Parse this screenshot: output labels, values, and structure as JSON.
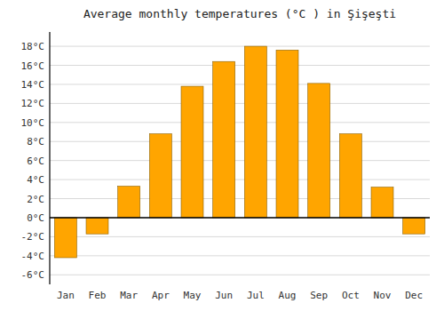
{
  "chart_data": {
    "type": "bar",
    "title": "Average monthly temperatures (°C ) in Şişeşti",
    "categories": [
      "Jan",
      "Feb",
      "Mar",
      "Apr",
      "May",
      "Jun",
      "Jul",
      "Aug",
      "Sep",
      "Oct",
      "Nov",
      "Dec"
    ],
    "values": [
      -4.2,
      -1.7,
      3.3,
      8.8,
      13.8,
      16.4,
      18.0,
      17.6,
      14.1,
      8.8,
      3.2,
      -1.7
    ],
    "color": "#FFA500",
    "ylim": [
      -7,
      19.5
    ],
    "yticks": [
      {
        "value": -6,
        "label": "-6°C"
      },
      {
        "value": -4,
        "label": "-4°C"
      },
      {
        "value": -2,
        "label": "-2°C"
      },
      {
        "value": 0,
        "label": "0°C"
      },
      {
        "value": 2,
        "label": "2°C"
      },
      {
        "value": 4,
        "label": "4°C"
      },
      {
        "value": 6,
        "label": "6°C"
      },
      {
        "value": 8,
        "label": "8°C"
      },
      {
        "value": 10,
        "label": "10°C"
      },
      {
        "value": 12,
        "label": "12°C"
      },
      {
        "value": 14,
        "label": "14°C"
      },
      {
        "value": 16,
        "label": "16°C"
      },
      {
        "value": 18,
        "label": "18°C"
      }
    ],
    "grid": true
  }
}
